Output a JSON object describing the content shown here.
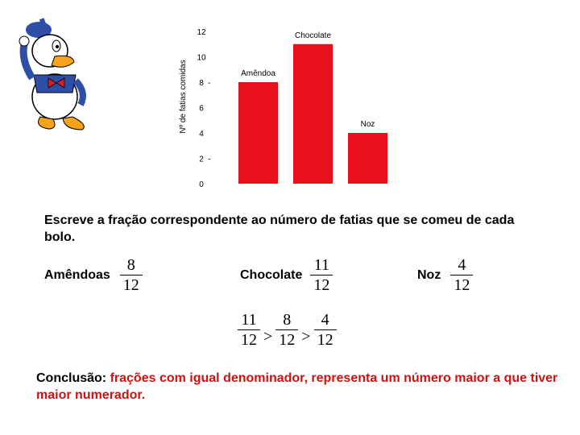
{
  "chart_data": {
    "type": "bar",
    "categories": [
      "Amêndoa",
      "Chocolate",
      "Noz"
    ],
    "values": [
      8,
      11,
      4
    ],
    "ylabel": "Nº de fatias comidas",
    "y_ticks": [
      "0",
      "2",
      "4",
      "6",
      "8",
      "10",
      "12"
    ],
    "ylim": [
      0,
      12
    ],
    "bar_color": "#e8101a",
    "grid": false
  },
  "prompt_text": "Escreve a fração correspondente ao número de fatias que se comeu de cada bolo.",
  "fractions": [
    {
      "label": "Amêndoas",
      "num": "8",
      "den": "12"
    },
    {
      "label": "Chocolate",
      "num": "11",
      "den": "12"
    },
    {
      "label": "Noz",
      "num": "4",
      "den": "12"
    }
  ],
  "comparison": {
    "f1": {
      "num": "11",
      "den": "12"
    },
    "op1": ">",
    "f2": {
      "num": "8",
      "den": "12"
    },
    "op2": ">",
    "f3": {
      "num": "4",
      "den": "12"
    }
  },
  "conclusion": {
    "prefix": "Conclusão:",
    "text": " frações com igual denominador, representa um número maior a que tiver maior numerador."
  },
  "colors": {
    "accent_red": "#cc1111"
  },
  "illustration": "donald-duck-icon"
}
